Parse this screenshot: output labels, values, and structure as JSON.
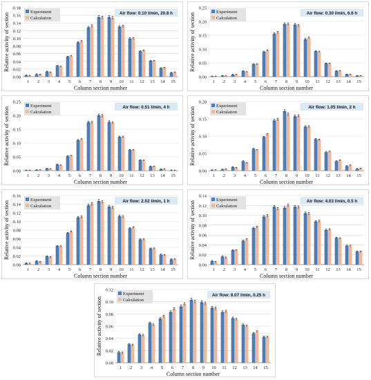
{
  "colors": {
    "experiment": "#4a7ebb",
    "calculation": "#f0b89a",
    "annotation_bg": "#dbe9f6",
    "legend_bg": "#e3e3e3",
    "gridline": "#d9d9d9"
  },
  "legend": {
    "experiment": "Experiment",
    "calculation": "Calculation"
  },
  "chart_data": [
    {
      "type": "bar",
      "annotation": "Air flow: 0.10 l/min, 20.8 h",
      "xlabel": "Column section number",
      "ylabel": "Relative activity of section",
      "categories": [
        "1",
        "2",
        "3",
        "4",
        "5",
        "6",
        "7",
        "8",
        "9",
        "10",
        "11",
        "12",
        "13",
        "14",
        "15"
      ],
      "ylim": [
        0,
        0.18
      ],
      "yticks": [
        "0.00",
        "0.02",
        "0.04",
        "0.06",
        "0.08",
        "0.10",
        "0.12",
        "0.14",
        "0.16",
        "0.18"
      ],
      "series": [
        {
          "name": "Experiment",
          "values": [
            0.003,
            0.006,
            0.013,
            0.028,
            0.052,
            0.089,
            0.128,
            0.155,
            0.155,
            0.13,
            0.099,
            0.066,
            0.041,
            0.022,
            0.01
          ]
        },
        {
          "name": "Calculation",
          "values": [
            0.002,
            0.005,
            0.011,
            0.026,
            0.054,
            0.092,
            0.132,
            0.154,
            0.153,
            0.131,
            0.099,
            0.068,
            0.041,
            0.023,
            0.011
          ]
        }
      ]
    },
    {
      "type": "bar",
      "annotation": "Air flow: 0.30 l/min, 6.6 h",
      "xlabel": "Column section number",
      "ylabel": "Relative activity of section",
      "categories": [
        "1",
        "2",
        "3",
        "4",
        "5",
        "6",
        "7",
        "8",
        "9",
        "10",
        "11",
        "12",
        "13",
        "14",
        "15"
      ],
      "ylim": [
        0,
        0.25
      ],
      "yticks": [
        "0.00",
        "0.05",
        "0.10",
        "0.15",
        "0.20",
        "0.25"
      ],
      "series": [
        {
          "name": "Experiment",
          "values": [
            0.001,
            0.003,
            0.007,
            0.02,
            0.045,
            0.09,
            0.155,
            0.19,
            0.188,
            0.135,
            0.092,
            0.048,
            0.02,
            0.008,
            0.003
          ]
        },
        {
          "name": "Calculation",
          "values": [
            0.001,
            0.002,
            0.007,
            0.017,
            0.045,
            0.095,
            0.16,
            0.19,
            0.185,
            0.14,
            0.09,
            0.047,
            0.021,
            0.008,
            0.003
          ]
        }
      ]
    },
    {
      "type": "bar",
      "annotation": "Air flow: 0.51 l/min, 4 h",
      "xlabel": "Column section number",
      "ylabel": "Relative activity of section",
      "categories": [
        "1",
        "2",
        "3",
        "4",
        "5",
        "6",
        "7",
        "8",
        "9",
        "10",
        "11",
        "12",
        "13",
        "14",
        "15"
      ],
      "ylim": [
        0,
        0.25
      ],
      "yticks": [
        "0.00",
        "0.05",
        "0.10",
        "0.15",
        "0.20",
        "0.25"
      ],
      "series": [
        {
          "name": "Experiment",
          "values": [
            0.001,
            0.002,
            0.007,
            0.022,
            0.052,
            0.11,
            0.175,
            0.2,
            0.176,
            0.122,
            0.075,
            0.038,
            0.015,
            0.005,
            0.001
          ]
        },
        {
          "name": "Calculation",
          "values": [
            0.001,
            0.002,
            0.006,
            0.019,
            0.054,
            0.113,
            0.174,
            0.198,
            0.173,
            0.122,
            0.075,
            0.037,
            0.015,
            0.005,
            0.001
          ]
        }
      ]
    },
    {
      "type": "bar",
      "annotation": "Air flow: 1.05 l/min, 2 h",
      "xlabel": "Column section number",
      "ylabel": "Relative activity of section",
      "categories": [
        "1",
        "2",
        "3",
        "4",
        "5",
        "6",
        "7",
        "8",
        "9",
        "10",
        "11",
        "12",
        "13",
        "14",
        "15"
      ],
      "ylim": [
        0,
        0.2
      ],
      "yticks": [
        "0.00",
        "0.05",
        "0.10",
        "0.15",
        "0.20"
      ],
      "series": [
        {
          "name": "Experiment",
          "values": [
            0.001,
            0.003,
            0.01,
            0.027,
            0.063,
            0.097,
            0.145,
            0.172,
            0.157,
            0.127,
            0.091,
            0.053,
            0.027,
            0.013,
            0.005
          ]
        },
        {
          "name": "Calculation",
          "values": [
            0.001,
            0.004,
            0.008,
            0.022,
            0.06,
            0.105,
            0.148,
            0.163,
            0.158,
            0.127,
            0.089,
            0.055,
            0.03,
            0.015,
            0.006
          ]
        }
      ]
    },
    {
      "type": "bar",
      "annotation": "Air flow: 2.02 l/min, 1 h",
      "xlabel": "Column section number",
      "ylabel": "Relative activity of section",
      "categories": [
        "1",
        "2",
        "3",
        "4",
        "5",
        "6",
        "7",
        "8",
        "9",
        "10",
        "11",
        "12",
        "13",
        "14",
        "15"
      ],
      "ylim": [
        0,
        0.16
      ],
      "yticks": [
        "0.00",
        "0.02",
        "0.04",
        "0.06",
        "0.08",
        "0.10",
        "0.12",
        "0.14",
        "0.16"
      ],
      "series": [
        {
          "name": "Experiment",
          "values": [
            0.003,
            0.008,
            0.019,
            0.043,
            0.073,
            0.109,
            0.137,
            0.147,
            0.134,
            0.112,
            0.084,
            0.058,
            0.037,
            0.023,
            0.012
          ]
        },
        {
          "name": "Calculation",
          "values": [
            0.002,
            0.006,
            0.017,
            0.042,
            0.076,
            0.11,
            0.14,
            0.145,
            0.132,
            0.111,
            0.086,
            0.058,
            0.037,
            0.022,
            0.012
          ]
        }
      ]
    },
    {
      "type": "bar",
      "annotation": "Air flow: 4.03 l/min, 0.5 h",
      "xlabel": "Column section number",
      "ylabel": "Relative activity of section",
      "categories": [
        "1",
        "2",
        "3",
        "4",
        "5",
        "6",
        "7",
        "8",
        "9",
        "10",
        "11",
        "12",
        "13",
        "14",
        "15"
      ],
      "ylim": [
        0,
        0.14
      ],
      "yticks": [
        "0.00",
        "0.02",
        "0.04",
        "0.06",
        "0.08",
        "0.10",
        "0.12",
        "0.14"
      ],
      "series": [
        {
          "name": "Experiment",
          "values": [
            0.007,
            0.016,
            0.029,
            0.048,
            0.074,
            0.097,
            0.117,
            0.115,
            0.117,
            0.104,
            0.087,
            0.07,
            0.054,
            0.038,
            0.026
          ]
        },
        {
          "name": "Calculation",
          "values": [
            0.005,
            0.014,
            0.029,
            0.051,
            0.076,
            0.099,
            0.113,
            0.12,
            0.116,
            0.103,
            0.088,
            0.071,
            0.053,
            0.038,
            0.026
          ]
        }
      ]
    },
    {
      "type": "bar",
      "annotation": "Air flow: 8.07 l/min, 0.25 h",
      "xlabel": "Column section number",
      "ylabel": "Relative activity of section",
      "categories": [
        "1",
        "2",
        "3",
        "4",
        "5",
        "6",
        "7",
        "8",
        "9",
        "10",
        "11",
        "12",
        "13",
        "14",
        "15"
      ],
      "ylim": [
        0,
        0.12
      ],
      "yticks": [
        "0.00",
        "0.02",
        "0.04",
        "0.06",
        "0.08",
        "0.10",
        "0.12"
      ],
      "series": [
        {
          "name": "Experiment",
          "values": [
            0.017,
            0.03,
            0.046,
            0.065,
            0.072,
            0.083,
            0.092,
            0.103,
            0.099,
            0.09,
            0.083,
            0.073,
            0.062,
            0.048,
            0.042
          ]
        },
        {
          "name": "Calculation",
          "values": [
            0.016,
            0.029,
            0.045,
            0.062,
            0.076,
            0.088,
            0.096,
            0.1,
            0.097,
            0.089,
            0.084,
            0.071,
            0.06,
            0.051,
            0.042
          ]
        }
      ]
    }
  ]
}
